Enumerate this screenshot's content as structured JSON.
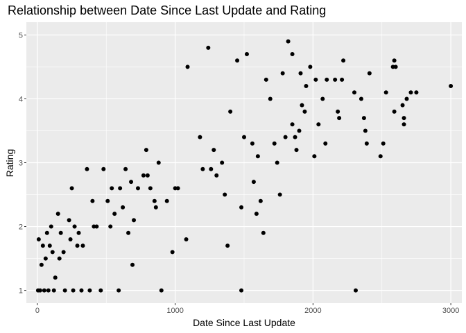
{
  "chart_data": {
    "type": "scatter",
    "title": "Relationship between Date Since Last Update and Rating",
    "xlabel": "Date Since Last Update",
    "ylabel": "Rating",
    "xlim": [
      -80,
      3080
    ],
    "ylim": [
      0.8,
      5.2
    ],
    "x_ticks": [
      0,
      1000,
      2000,
      3000
    ],
    "x_tick_labels": [
      "0",
      "1000",
      "2000",
      "3000"
    ],
    "y_ticks": [
      1,
      2,
      3,
      4,
      5
    ],
    "y_tick_labels": [
      "1",
      "2",
      "3",
      "4",
      "5"
    ],
    "grid": true,
    "colors": {
      "panel": "#ebebeb",
      "grid": "#ffffff",
      "point": "#000000"
    },
    "series": [
      {
        "points": [
          [
            3000,
            4.2
          ],
          [
            2750,
            4.1
          ],
          [
            2710,
            4.1
          ],
          [
            2680,
            4.0
          ],
          [
            2650,
            3.9
          ],
          [
            2660,
            3.7
          ],
          [
            2660,
            3.6
          ],
          [
            2590,
            4.6
          ],
          [
            2580,
            4.5
          ],
          [
            2600,
            4.5
          ],
          [
            2590,
            3.8
          ],
          [
            2530,
            4.1
          ],
          [
            2510,
            3.3
          ],
          [
            2490,
            3.1
          ],
          [
            2410,
            4.4
          ],
          [
            2390,
            3.3
          ],
          [
            2380,
            3.5
          ],
          [
            2370,
            3.7
          ],
          [
            2350,
            4.0
          ],
          [
            2310,
            1.0
          ],
          [
            2300,
            4.1
          ],
          [
            2220,
            4.6
          ],
          [
            2210,
            4.3
          ],
          [
            2190,
            3.7
          ],
          [
            2180,
            3.8
          ],
          [
            2160,
            4.3
          ],
          [
            2100,
            4.3
          ],
          [
            2090,
            3.3
          ],
          [
            2070,
            4.0
          ],
          [
            2040,
            3.6
          ],
          [
            2020,
            4.3
          ],
          [
            2010,
            3.1
          ],
          [
            1980,
            4.5
          ],
          [
            1950,
            4.2
          ],
          [
            1940,
            3.8
          ],
          [
            1920,
            3.9
          ],
          [
            1910,
            4.4
          ],
          [
            1900,
            3.5
          ],
          [
            1880,
            3.2
          ],
          [
            1870,
            3.4
          ],
          [
            1850,
            3.6
          ],
          [
            1850,
            4.7
          ],
          [
            1820,
            4.9
          ],
          [
            1800,
            3.4
          ],
          [
            1780,
            4.4
          ],
          [
            1760,
            2.5
          ],
          [
            1740,
            3.0
          ],
          [
            1720,
            3.3
          ],
          [
            1690,
            4.0
          ],
          [
            1660,
            4.3
          ],
          [
            1640,
            1.9
          ],
          [
            1620,
            2.4
          ],
          [
            1600,
            3.1
          ],
          [
            1590,
            2.2
          ],
          [
            1570,
            2.7
          ],
          [
            1560,
            3.3
          ],
          [
            1520,
            4.7
          ],
          [
            1500,
            3.4
          ],
          [
            1480,
            2.3
          ],
          [
            1480,
            1.0
          ],
          [
            1450,
            4.6
          ],
          [
            1400,
            3.8
          ],
          [
            1380,
            1.7
          ],
          [
            1360,
            2.5
          ],
          [
            1340,
            3.0
          ],
          [
            1300,
            2.8
          ],
          [
            1280,
            3.2
          ],
          [
            1260,
            2.9
          ],
          [
            1240,
            4.8
          ],
          [
            1200,
            2.9
          ],
          [
            1180,
            3.4
          ],
          [
            1090,
            4.5
          ],
          [
            1080,
            1.8
          ],
          [
            1020,
            2.6
          ],
          [
            1000,
            2.6
          ],
          [
            980,
            1.6
          ],
          [
            940,
            2.4
          ],
          [
            900,
            1.0
          ],
          [
            880,
            3.0
          ],
          [
            860,
            2.3
          ],
          [
            850,
            2.4
          ],
          [
            820,
            2.6
          ],
          [
            800,
            2.8
          ],
          [
            790,
            3.2
          ],
          [
            770,
            2.8
          ],
          [
            730,
            2.6
          ],
          [
            700,
            2.1
          ],
          [
            690,
            1.4
          ],
          [
            680,
            2.7
          ],
          [
            660,
            1.9
          ],
          [
            640,
            2.9
          ],
          [
            620,
            2.3
          ],
          [
            600,
            2.6
          ],
          [
            590,
            1.0
          ],
          [
            560,
            2.2
          ],
          [
            540,
            2.6
          ],
          [
            530,
            2.0
          ],
          [
            510,
            2.4
          ],
          [
            480,
            2.9
          ],
          [
            460,
            1.0
          ],
          [
            430,
            2.0
          ],
          [
            410,
            2.0
          ],
          [
            400,
            2.4
          ],
          [
            380,
            1.0
          ],
          [
            360,
            2.9
          ],
          [
            330,
            1.7
          ],
          [
            320,
            1.0
          ],
          [
            300,
            1.9
          ],
          [
            290,
            1.7
          ],
          [
            270,
            2.0
          ],
          [
            260,
            1.0
          ],
          [
            250,
            2.6
          ],
          [
            240,
            1.8
          ],
          [
            230,
            2.1
          ],
          [
            200,
            1.0
          ],
          [
            190,
            1.6
          ],
          [
            170,
            1.9
          ],
          [
            160,
            1.5
          ],
          [
            150,
            2.2
          ],
          [
            130,
            1.2
          ],
          [
            120,
            1.0
          ],
          [
            110,
            1.6
          ],
          [
            100,
            2.0
          ],
          [
            90,
            1.7
          ],
          [
            80,
            1.0
          ],
          [
            70,
            1.9
          ],
          [
            60,
            1.5
          ],
          [
            40,
            1.7
          ],
          [
            30,
            1.4
          ],
          [
            20,
            1.0
          ],
          [
            10,
            1.8
          ],
          [
            5,
            1.0
          ],
          [
            50,
            1.0
          ]
        ]
      }
    ]
  }
}
